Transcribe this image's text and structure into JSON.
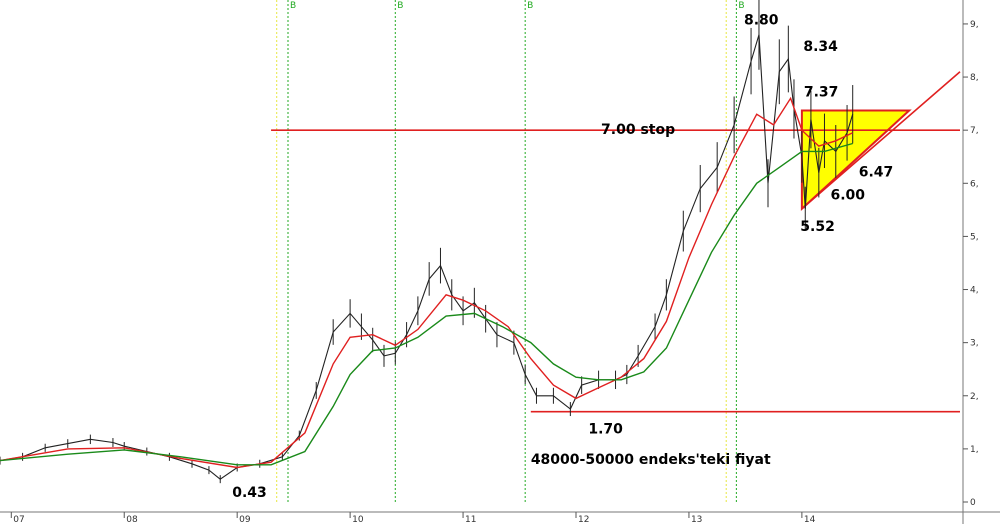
{
  "chart_data": {
    "type": "candlestick",
    "title": "",
    "xlabel": "",
    "ylabel": "",
    "x_ticks": [
      "07",
      "08",
      "09",
      "10",
      "11",
      "12",
      "13",
      "14"
    ],
    "y_ticks": [
      "0",
      "1,",
      "2,",
      "3,",
      "4,",
      "5,",
      "6,",
      "7,",
      "8,",
      "9,"
    ],
    "ylim": [
      0,
      9.3
    ],
    "xlim": [
      2006.9,
      2015.4
    ],
    "grid": false,
    "series": [
      {
        "kind": "price",
        "color": "#222222",
        "points": [
          [
            2006.9,
            0.78
          ],
          [
            2007.1,
            0.85
          ],
          [
            2007.3,
            1.02
          ],
          [
            2007.5,
            1.1
          ],
          [
            2007.7,
            1.18
          ],
          [
            2007.9,
            1.12
          ],
          [
            2008.0,
            1.05
          ],
          [
            2008.2,
            0.95
          ],
          [
            2008.4,
            0.85
          ],
          [
            2008.6,
            0.72
          ],
          [
            2008.75,
            0.6
          ],
          [
            2008.85,
            0.43
          ],
          [
            2009.0,
            0.65
          ],
          [
            2009.2,
            0.72
          ],
          [
            2009.4,
            0.85
          ],
          [
            2009.55,
            1.25
          ],
          [
            2009.7,
            2.1
          ],
          [
            2009.85,
            3.2
          ],
          [
            2010.0,
            3.55
          ],
          [
            2010.1,
            3.3
          ],
          [
            2010.2,
            3.05
          ],
          [
            2010.3,
            2.75
          ],
          [
            2010.4,
            2.8
          ],
          [
            2010.5,
            3.15
          ],
          [
            2010.6,
            3.6
          ],
          [
            2010.7,
            4.2
          ],
          [
            2010.8,
            4.45
          ],
          [
            2010.9,
            3.9
          ],
          [
            2011.0,
            3.6
          ],
          [
            2011.1,
            3.75
          ],
          [
            2011.2,
            3.45
          ],
          [
            2011.3,
            3.15
          ],
          [
            2011.45,
            3.0
          ],
          [
            2011.55,
            2.4
          ],
          [
            2011.65,
            2.0
          ],
          [
            2011.8,
            2.0
          ],
          [
            2011.95,
            1.75
          ],
          [
            2012.05,
            2.2
          ],
          [
            2012.2,
            2.3
          ],
          [
            2012.35,
            2.3
          ],
          [
            2012.45,
            2.4
          ],
          [
            2012.55,
            2.75
          ],
          [
            2012.7,
            3.3
          ],
          [
            2012.8,
            3.9
          ],
          [
            2012.95,
            5.1
          ],
          [
            2013.1,
            5.9
          ],
          [
            2013.25,
            6.3
          ],
          [
            2013.4,
            7.1
          ],
          [
            2013.55,
            8.3
          ],
          [
            2013.62,
            8.8
          ],
          [
            2013.7,
            6.0
          ],
          [
            2013.8,
            8.1
          ],
          [
            2013.88,
            8.34
          ],
          [
            2013.93,
            7.4
          ],
          [
            2014.0,
            6.5
          ],
          [
            2014.03,
            5.52
          ],
          [
            2014.08,
            7.2
          ],
          [
            2014.15,
            6.2
          ],
          [
            2014.2,
            6.8
          ],
          [
            2014.3,
            6.6
          ],
          [
            2014.4,
            6.95
          ],
          [
            2014.45,
            7.3
          ]
        ]
      },
      {
        "kind": "moving-average-short",
        "color": "#e02020",
        "points": [
          [
            2006.9,
            0.78
          ],
          [
            2007.5,
            1.0
          ],
          [
            2008.0,
            1.02
          ],
          [
            2008.5,
            0.82
          ],
          [
            2009.0,
            0.65
          ],
          [
            2009.3,
            0.75
          ],
          [
            2009.6,
            1.3
          ],
          [
            2009.85,
            2.6
          ],
          [
            2010.0,
            3.1
          ],
          [
            2010.2,
            3.15
          ],
          [
            2010.4,
            2.95
          ],
          [
            2010.6,
            3.25
          ],
          [
            2010.85,
            3.9
          ],
          [
            2011.0,
            3.8
          ],
          [
            2011.2,
            3.6
          ],
          [
            2011.4,
            3.3
          ],
          [
            2011.6,
            2.7
          ],
          [
            2011.8,
            2.2
          ],
          [
            2012.0,
            1.95
          ],
          [
            2012.2,
            2.15
          ],
          [
            2012.4,
            2.35
          ],
          [
            2012.6,
            2.7
          ],
          [
            2012.8,
            3.4
          ],
          [
            2013.0,
            4.6
          ],
          [
            2013.2,
            5.6
          ],
          [
            2013.4,
            6.5
          ],
          [
            2013.6,
            7.3
          ],
          [
            2013.75,
            7.1
          ],
          [
            2013.9,
            7.6
          ],
          [
            2014.0,
            7.0
          ],
          [
            2014.15,
            6.7
          ],
          [
            2014.3,
            6.8
          ],
          [
            2014.45,
            6.95
          ]
        ]
      },
      {
        "kind": "moving-average-long",
        "color": "#1a8a1a",
        "points": [
          [
            2006.9,
            0.78
          ],
          [
            2007.5,
            0.9
          ],
          [
            2008.0,
            0.98
          ],
          [
            2008.5,
            0.85
          ],
          [
            2009.0,
            0.7
          ],
          [
            2009.3,
            0.7
          ],
          [
            2009.6,
            0.95
          ],
          [
            2009.85,
            1.8
          ],
          [
            2010.0,
            2.4
          ],
          [
            2010.2,
            2.85
          ],
          [
            2010.4,
            2.9
          ],
          [
            2010.6,
            3.1
          ],
          [
            2010.85,
            3.5
          ],
          [
            2011.1,
            3.55
          ],
          [
            2011.35,
            3.3
          ],
          [
            2011.6,
            3.0
          ],
          [
            2011.8,
            2.6
          ],
          [
            2012.0,
            2.35
          ],
          [
            2012.2,
            2.3
          ],
          [
            2012.4,
            2.3
          ],
          [
            2012.6,
            2.45
          ],
          [
            2012.8,
            2.9
          ],
          [
            2013.0,
            3.8
          ],
          [
            2013.2,
            4.7
          ],
          [
            2013.4,
            5.4
          ],
          [
            2013.6,
            6.0
          ],
          [
            2013.8,
            6.3
          ],
          [
            2014.0,
            6.6
          ],
          [
            2014.2,
            6.6
          ],
          [
            2014.45,
            6.75
          ]
        ]
      }
    ],
    "vertical_markers": [
      {
        "x": 2009.35,
        "color": "#e8e840",
        "label": ""
      },
      {
        "x": 2009.45,
        "color": "#22aa22",
        "label": "B"
      },
      {
        "x": 2010.4,
        "color": "#22aa22",
        "label": "B"
      },
      {
        "x": 2011.55,
        "color": "#22aa22",
        "label": "B"
      },
      {
        "x": 2013.33,
        "color": "#e8e840",
        "label": ""
      },
      {
        "x": 2013.42,
        "color": "#22aa22",
        "label": "B"
      }
    ],
    "horizontal_lines": [
      {
        "y": 7.0,
        "x_from": 2009.3,
        "x_to": 2015.4,
        "color": "#e02020"
      },
      {
        "y": 1.7,
        "x_from": 2011.6,
        "x_to": 2015.4,
        "color": "#e02020"
      }
    ],
    "triangle": {
      "fill": "#ffff00",
      "stroke": "#e02020",
      "points": [
        [
          2014.0,
          5.52
        ],
        [
          2014.0,
          7.37
        ],
        [
          2014.95,
          7.37
        ]
      ]
    },
    "trendline": {
      "color": "#e02020",
      "from": [
        2014.0,
        5.52
      ],
      "to": [
        2015.4,
        8.1
      ]
    },
    "annotations": [
      {
        "text": "8.80",
        "x": 2013.62,
        "y": 8.8
      },
      {
        "text": "8.34",
        "x": 2013.88,
        "y": 8.34
      },
      {
        "text": "7.37",
        "x": 2014.0,
        "y": 7.37
      },
      {
        "text": "7.00 stop",
        "x": 2009.3,
        "y": 7.0
      },
      {
        "text": "6.47",
        "x": 2014.45,
        "y": 6.47
      },
      {
        "text": "6.00",
        "x": 2014.2,
        "y": 6.0
      },
      {
        "text": "5.52",
        "x": 2014.03,
        "y": 5.52
      },
      {
        "text": "1.70",
        "x": 2011.95,
        "y": 1.7
      },
      {
        "text": "0.43",
        "x": 2008.85,
        "y": 0.43
      },
      {
        "text": "48000-50000 endeks'teki fiyat",
        "x": 2011.6,
        "y": 0.9
      }
    ]
  }
}
